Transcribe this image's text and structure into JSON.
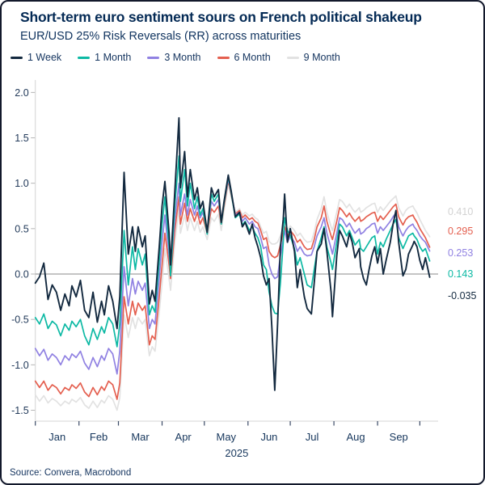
{
  "card": {
    "title": "Short-term euro sentiment sours on French political shakeup",
    "subtitle": "EUR/USD 25% Risk Reversals (RR) across maturities",
    "source": "Source: Convera, Macrobond"
  },
  "legend": {
    "items": [
      {
        "label": "1 Week",
        "color": "#13293f"
      },
      {
        "label": "1 Month",
        "color": "#0db9a4"
      },
      {
        "label": "3 Month",
        "color": "#9081e2"
      },
      {
        "label": "6 Month",
        "color": "#e45f4f"
      },
      {
        "label": "9 Month",
        "color": "#e2e2e2"
      }
    ]
  },
  "chart_data": {
    "type": "line",
    "title": "Short-term euro sentiment sours on French political shakeup",
    "subtitle": "EUR/USD 25% Risk Reversals (RR) across maturities",
    "xlabel": "2025",
    "ylabel": "",
    "ylim": [
      -1.5,
      2.0
    ],
    "grid": false,
    "legend_position": "top-left",
    "y_axis": {
      "ticks": [
        2.0,
        1.5,
        1.0,
        0.5,
        0.0,
        -0.5,
        -1.0,
        -1.5
      ]
    },
    "x_axis": {
      "year_label": "2025",
      "months": [
        "Jan",
        "Feb",
        "Mar",
        "Apr",
        "May",
        "Jun",
        "Jul",
        "Aug",
        "Sep"
      ],
      "month_start_days": [
        0,
        31,
        59,
        90,
        120,
        151,
        181,
        212,
        243,
        273
      ]
    },
    "zero_line": 0.0,
    "days": [
      0,
      3,
      6,
      9,
      12,
      15,
      18,
      21,
      24,
      26,
      29,
      32,
      35,
      38,
      41,
      44,
      47,
      49,
      52,
      55,
      58,
      60,
      63,
      66,
      69,
      71,
      73,
      76,
      78,
      81,
      83,
      85,
      88,
      90,
      92,
      95,
      96,
      99,
      102,
      103,
      106,
      108,
      110,
      113,
      115,
      117,
      119,
      122,
      125,
      127,
      130,
      132,
      134,
      137,
      139,
      142,
      145,
      147,
      149,
      152,
      154,
      156,
      158,
      160,
      162,
      164,
      166,
      168,
      170,
      172,
      174,
      176,
      177,
      179,
      181,
      184,
      186,
      188,
      191,
      193,
      196,
      198,
      200,
      203,
      205,
      207,
      210,
      211,
      214,
      216,
      218,
      221,
      223,
      225,
      227,
      230,
      231,
      233,
      235,
      237,
      239,
      241,
      243,
      245,
      247,
      249,
      252,
      254,
      256,
      258,
      260,
      261,
      263,
      265,
      268,
      269,
      271,
      273,
      275,
      277,
      280
    ],
    "series": [
      {
        "name": "1 Week",
        "color": "#13293f",
        "end_label": "-0.035",
        "values": [
          -0.1,
          -0.03,
          0.12,
          -0.28,
          -0.12,
          -0.2,
          -0.4,
          -0.22,
          -0.35,
          -0.13,
          -0.25,
          -0.07,
          -0.4,
          -0.48,
          -0.2,
          -0.53,
          -0.3,
          -0.45,
          -0.13,
          -0.3,
          -0.6,
          -0.25,
          1.12,
          0.22,
          0.52,
          0.25,
          0.52,
          0.3,
          0.42,
          -0.33,
          -0.18,
          -0.3,
          0.3,
          0.75,
          1.02,
          0.45,
          0.1,
          0.9,
          1.72,
          0.95,
          1.35,
          0.85,
          1.15,
          0.82,
          0.95,
          0.72,
          0.8,
          0.46,
          0.95,
          0.85,
          0.93,
          0.57,
          0.8,
          1.09,
          0.92,
          0.63,
          0.68,
          0.52,
          0.57,
          0.44,
          0.55,
          0.4,
          0.3,
          0.18,
          -0.02,
          -0.12,
          -0.05,
          -0.6,
          -1.28,
          -0.55,
          0.3,
          0.6,
          0.88,
          0.35,
          0.5,
          0.25,
          -0.15,
          0.05,
          -0.25,
          -0.38,
          -0.44,
          -0.1,
          0.25,
          0.33,
          0.5,
          0.25,
          -0.2,
          -0.47,
          0.2,
          0.48,
          0.42,
          0.3,
          0.45,
          0.35,
          0.18,
          0.28,
          0.08,
          -0.05,
          -0.12,
          0.05,
          0.2,
          0.3,
          0.12,
          0.28,
          0.0,
          0.15,
          0.35,
          0.55,
          0.7,
          0.35,
          0.1,
          -0.02,
          0.05,
          0.22,
          0.32,
          0.36,
          0.3,
          0.15,
          0.05,
          0.18,
          -0.035
        ]
      },
      {
        "name": "1 Month",
        "color": "#0db9a4",
        "end_label": "0.143",
        "values": [
          -0.48,
          -0.55,
          -0.44,
          -0.6,
          -0.52,
          -0.56,
          -0.68,
          -0.55,
          -0.62,
          -0.52,
          -0.58,
          -0.5,
          -0.68,
          -0.78,
          -0.6,
          -0.72,
          -0.58,
          -0.65,
          -0.48,
          -0.55,
          -0.8,
          -0.55,
          0.48,
          -0.12,
          0.3,
          0.05,
          0.28,
          0.1,
          0.22,
          -0.45,
          -0.35,
          -0.42,
          0.15,
          0.55,
          0.85,
          0.3,
          -0.02,
          0.75,
          1.3,
          0.8,
          1.15,
          0.75,
          1.0,
          0.72,
          0.85,
          0.65,
          0.72,
          0.44,
          0.88,
          0.8,
          0.88,
          0.55,
          0.78,
          1.07,
          0.9,
          0.62,
          0.66,
          0.54,
          0.58,
          0.48,
          0.52,
          0.45,
          0.4,
          0.3,
          0.1,
          0.05,
          -0.2,
          -0.35,
          -0.43,
          -0.44,
          -0.1,
          0.35,
          0.62,
          0.48,
          0.42,
          0.28,
          0.1,
          0.18,
          0.0,
          -0.12,
          -0.15,
          0.05,
          0.25,
          0.4,
          0.52,
          0.3,
          0.12,
          0.05,
          0.35,
          0.55,
          0.52,
          0.42,
          0.48,
          0.4,
          0.32,
          0.38,
          0.28,
          0.25,
          0.3,
          0.35,
          0.4,
          0.42,
          0.22,
          0.35,
          0.3,
          0.38,
          0.48,
          0.55,
          0.6,
          0.4,
          0.32,
          0.28,
          0.35,
          0.42,
          0.45,
          0.42,
          0.38,
          0.3,
          0.25,
          0.28,
          0.143
        ]
      },
      {
        "name": "3 Month",
        "color": "#9081e2",
        "end_label": "0.253",
        "values": [
          -0.82,
          -0.9,
          -0.83,
          -0.95,
          -0.88,
          -0.92,
          -1.0,
          -0.9,
          -0.95,
          -0.88,
          -0.92,
          -0.85,
          -0.98,
          -1.05,
          -0.92,
          -1.02,
          -0.9,
          -0.95,
          -0.82,
          -0.88,
          -1.1,
          -0.85,
          0.08,
          -0.35,
          -0.05,
          -0.22,
          -0.08,
          -0.18,
          -0.1,
          -0.6,
          -0.5,
          -0.55,
          -0.05,
          0.35,
          0.65,
          0.2,
          0.05,
          0.6,
          1.0,
          0.65,
          0.88,
          0.65,
          0.82,
          0.65,
          0.75,
          0.62,
          0.68,
          0.48,
          0.8,
          0.75,
          0.82,
          0.58,
          0.78,
          1.05,
          0.9,
          0.65,
          0.68,
          0.58,
          0.62,
          0.55,
          0.58,
          0.52,
          0.5,
          0.4,
          0.28,
          0.3,
          0.1,
          0.0,
          -0.05,
          -0.03,
          0.2,
          0.38,
          0.48,
          0.35,
          0.42,
          0.35,
          0.25,
          0.3,
          0.22,
          0.2,
          0.21,
          0.3,
          0.42,
          0.52,
          0.62,
          0.45,
          0.28,
          0.22,
          0.45,
          0.62,
          0.6,
          0.52,
          0.56,
          0.5,
          0.45,
          0.5,
          0.44,
          0.46,
          0.5,
          0.52,
          0.55,
          0.56,
          0.45,
          0.52,
          0.48,
          0.52,
          0.58,
          0.63,
          0.67,
          0.52,
          0.45,
          0.42,
          0.48,
          0.52,
          0.55,
          0.52,
          0.48,
          0.42,
          0.38,
          0.35,
          0.253
        ]
      },
      {
        "name": "6 Month",
        "color": "#e45f4f",
        "end_label": "0.295",
        "values": [
          -1.18,
          -1.25,
          -1.18,
          -1.28,
          -1.22,
          -1.25,
          -1.32,
          -1.25,
          -1.28,
          -1.22,
          -1.26,
          -1.2,
          -1.3,
          -1.35,
          -1.25,
          -1.33,
          -1.24,
          -1.28,
          -1.18,
          -1.22,
          -1.38,
          -1.2,
          -0.25,
          -0.55,
          -0.3,
          -0.45,
          -0.32,
          -0.4,
          -0.35,
          -0.78,
          -0.68,
          -0.72,
          -0.25,
          0.1,
          0.45,
          0.1,
          -0.05,
          0.48,
          0.85,
          0.55,
          0.78,
          0.58,
          0.72,
          0.58,
          0.68,
          0.55,
          0.62,
          0.45,
          0.72,
          0.68,
          0.75,
          0.55,
          0.75,
          1.03,
          0.88,
          0.66,
          0.7,
          0.62,
          0.65,
          0.6,
          0.62,
          0.58,
          0.56,
          0.48,
          0.38,
          0.4,
          0.25,
          0.2,
          0.18,
          0.2,
          0.32,
          0.45,
          0.52,
          0.42,
          0.48,
          0.42,
          0.35,
          0.38,
          0.3,
          0.27,
          0.28,
          0.38,
          0.52,
          0.62,
          0.75,
          0.58,
          0.42,
          0.38,
          0.58,
          0.73,
          0.7,
          0.63,
          0.67,
          0.62,
          0.58,
          0.63,
          0.58,
          0.6,
          0.63,
          0.65,
          0.67,
          0.68,
          0.58,
          0.64,
          0.6,
          0.64,
          0.7,
          0.74,
          0.77,
          0.63,
          0.57,
          0.54,
          0.6,
          0.63,
          0.65,
          0.62,
          0.57,
          0.5,
          0.45,
          0.4,
          0.295
        ]
      },
      {
        "name": "9 Month",
        "color": "#e2e2e2",
        "end_label": "0.410",
        "values": [
          -1.33,
          -1.4,
          -1.34,
          -1.42,
          -1.37,
          -1.4,
          -1.45,
          -1.4,
          -1.43,
          -1.38,
          -1.41,
          -1.36,
          -1.44,
          -1.48,
          -1.4,
          -1.47,
          -1.39,
          -1.42,
          -1.34,
          -1.38,
          -1.5,
          -1.36,
          -0.45,
          -0.7,
          -0.48,
          -0.6,
          -0.48,
          -0.55,
          -0.5,
          -0.9,
          -0.8,
          -0.85,
          -0.42,
          -0.1,
          0.28,
          -0.05,
          -0.18,
          0.35,
          0.72,
          0.45,
          0.65,
          0.48,
          0.62,
          0.48,
          0.58,
          0.46,
          0.52,
          0.38,
          0.62,
          0.58,
          0.66,
          0.48,
          0.7,
          1.0,
          0.85,
          0.68,
          0.72,
          0.65,
          0.68,
          0.64,
          0.66,
          0.62,
          0.6,
          0.52,
          0.45,
          0.47,
          0.36,
          0.33,
          0.33,
          0.35,
          0.42,
          0.5,
          0.55,
          0.48,
          0.53,
          0.48,
          0.42,
          0.45,
          0.38,
          0.35,
          0.36,
          0.46,
          0.6,
          0.72,
          0.85,
          0.68,
          0.52,
          0.48,
          0.68,
          0.82,
          0.8,
          0.73,
          0.77,
          0.72,
          0.68,
          0.73,
          0.68,
          0.7,
          0.73,
          0.75,
          0.77,
          0.78,
          0.68,
          0.74,
          0.7,
          0.74,
          0.8,
          0.83,
          0.86,
          0.73,
          0.67,
          0.64,
          0.7,
          0.73,
          0.75,
          0.72,
          0.67,
          0.6,
          0.54,
          0.48,
          0.41
        ]
      }
    ]
  }
}
